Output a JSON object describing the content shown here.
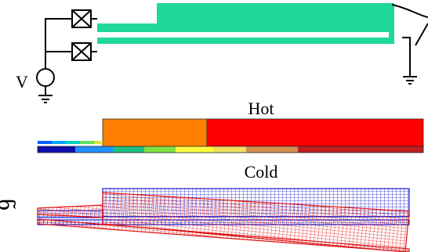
{
  "labels": {
    "voltage": "V",
    "hot": "Hot",
    "cold": "Cold",
    "clipped_edge_glyph": "ნ"
  },
  "colors": {
    "beam": "#1fd89a",
    "wire": "#000000",
    "thermal_hot": "#ff0000",
    "thermal_warm": "#ff8000",
    "mesh_blue": "#2020d0",
    "mesh_red": "#e01010"
  },
  "icons": {
    "heater_boxes": "crossed-box-icon",
    "source": "voltage-source-icon",
    "ground": "ground-icon"
  }
}
